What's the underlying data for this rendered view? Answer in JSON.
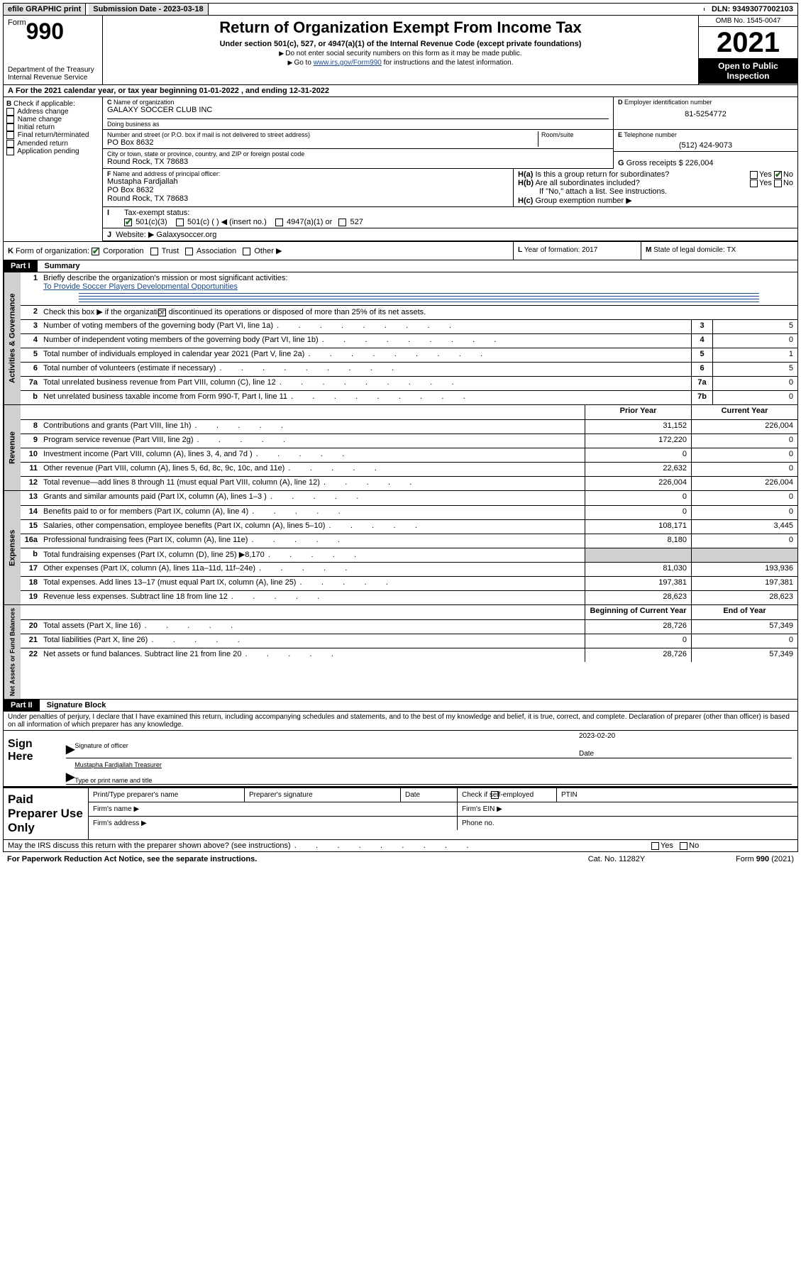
{
  "topbar": {
    "efile": "efile GRAPHIC print",
    "submission_label": "Submission Date - 2023-03-18",
    "dln": "DLN: 93493077002103"
  },
  "header": {
    "form_label": "Form",
    "form_num": "990",
    "dept": "Department of the Treasury",
    "irs": "Internal Revenue Service",
    "title": "Return of Organization Exempt From Income Tax",
    "sub": "Under section 501(c), 527, or 4947(a)(1) of the Internal Revenue Code (except private foundations)",
    "note1": "Do not enter social security numbers on this form as it may be made public.",
    "note2_pre": "Go to ",
    "note2_link": "www.irs.gov/Form990",
    "note2_post": " for instructions and the latest information.",
    "omb": "OMB No. 1545-0047",
    "year": "2021",
    "inspect": "Open to Public Inspection"
  },
  "lineA": "For the 2021 calendar year, or tax year beginning 01-01-2022   , and ending 12-31-2022",
  "B": {
    "label": "Check if applicable:",
    "opts": [
      "Address change",
      "Name change",
      "Initial return",
      "Final return/terminated",
      "Amended return",
      "Application pending"
    ]
  },
  "C": {
    "name_label": "Name of organization",
    "name": "GALAXY SOCCER CLUB INC",
    "dba_label": "Doing business as",
    "street_label": "Number and street (or P.O. box if mail is not delivered to street address)",
    "room_label": "Room/suite",
    "street": "PO Box 8632",
    "city_label": "City or town, state or province, country, and ZIP or foreign postal code",
    "city": "Round Rock, TX  78683"
  },
  "D": {
    "label": "Employer identification number",
    "val": "81-5254772"
  },
  "E": {
    "label": "Telephone number",
    "val": "(512) 424-9073"
  },
  "G": {
    "label": "Gross receipts $",
    "val": "226,004"
  },
  "F": {
    "label": "Name and address of principal officer:",
    "name": "Mustapha Fardjallah",
    "addr1": "PO Box 8632",
    "addr2": "Round Rock, TX  78683"
  },
  "H": {
    "a": "Is this a group return for subordinates?",
    "b": "Are all subordinates included?",
    "note": "If \"No,\" attach a list. See instructions.",
    "c": "Group exemption number ▶",
    "yes": "Yes",
    "no": "No"
  },
  "I": {
    "label": "Tax-exempt status:",
    "o1": "501(c)(3)",
    "o2": "501(c) (  ) ◀ (insert no.)",
    "o3": "4947(a)(1) or",
    "o4": "527"
  },
  "J": {
    "label": "Website: ▶",
    "val": "Galaxysoccer.org"
  },
  "K": {
    "label": "Form of organization:",
    "o1": "Corporation",
    "o2": "Trust",
    "o3": "Association",
    "o4": "Other ▶"
  },
  "L": {
    "label": "Year of formation: 2017"
  },
  "M": {
    "label": "State of legal domicile: TX"
  },
  "part1": {
    "hdr": "Part I",
    "title": "Summary",
    "l1_label": "Briefly describe the organization's mission or most significant activities:",
    "l1_val": "To Provide Soccer Players Developmental Opportunities",
    "l2": "Check this box ▶       if the organization discontinued its operations or disposed of more than 25% of its net assets.",
    "rows_gov": [
      {
        "n": "3",
        "d": "Number of voting members of the governing body (Part VI, line 1a)",
        "box": "3",
        "v": "5"
      },
      {
        "n": "4",
        "d": "Number of independent voting members of the governing body (Part VI, line 1b)",
        "box": "4",
        "v": "0"
      },
      {
        "n": "5",
        "d": "Total number of individuals employed in calendar year 2021 (Part V, line 2a)",
        "box": "5",
        "v": "1"
      },
      {
        "n": "6",
        "d": "Total number of volunteers (estimate if necessary)",
        "box": "6",
        "v": "5"
      },
      {
        "n": "7a",
        "d": "Total unrelated business revenue from Part VIII, column (C), line 12",
        "box": "7a",
        "v": "0"
      },
      {
        "n": "b",
        "d": "Net unrelated business taxable income from Form 990-T, Part I, line 11",
        "box": "7b",
        "v": "0"
      }
    ],
    "col_prior": "Prior Year",
    "col_current": "Current Year",
    "rows_rev": [
      {
        "n": "8",
        "d": "Contributions and grants (Part VIII, line 1h)",
        "py": "31,152",
        "cy": "226,004"
      },
      {
        "n": "9",
        "d": "Program service revenue (Part VIII, line 2g)",
        "py": "172,220",
        "cy": "0"
      },
      {
        "n": "10",
        "d": "Investment income (Part VIII, column (A), lines 3, 4, and 7d )",
        "py": "0",
        "cy": "0"
      },
      {
        "n": "11",
        "d": "Other revenue (Part VIII, column (A), lines 5, 6d, 8c, 9c, 10c, and 11e)",
        "py": "22,632",
        "cy": "0"
      },
      {
        "n": "12",
        "d": "Total revenue—add lines 8 through 11 (must equal Part VIII, column (A), line 12)",
        "py": "226,004",
        "cy": "226,004"
      }
    ],
    "rows_exp": [
      {
        "n": "13",
        "d": "Grants and similar amounts paid (Part IX, column (A), lines 1–3 )",
        "py": "0",
        "cy": "0"
      },
      {
        "n": "14",
        "d": "Benefits paid to or for members (Part IX, column (A), line 4)",
        "py": "0",
        "cy": "0"
      },
      {
        "n": "15",
        "d": "Salaries, other compensation, employee benefits (Part IX, column (A), lines 5–10)",
        "py": "108,171",
        "cy": "3,445"
      },
      {
        "n": "16a",
        "d": "Professional fundraising fees (Part IX, column (A), line 11e)",
        "py": "8,180",
        "cy": "0"
      },
      {
        "n": "b",
        "d": "Total fundraising expenses (Part IX, column (D), line 25) ▶8,170",
        "py": "",
        "cy": "",
        "shaded": true
      },
      {
        "n": "17",
        "d": "Other expenses (Part IX, column (A), lines 11a–11d, 11f–24e)",
        "py": "81,030",
        "cy": "193,936"
      },
      {
        "n": "18",
        "d": "Total expenses. Add lines 13–17 (must equal Part IX, column (A), line 25)",
        "py": "197,381",
        "cy": "197,381"
      },
      {
        "n": "19",
        "d": "Revenue less expenses. Subtract line 18 from line 12",
        "py": "28,623",
        "cy": "28,623"
      }
    ],
    "col_beg": "Beginning of Current Year",
    "col_end": "End of Year",
    "rows_net": [
      {
        "n": "20",
        "d": "Total assets (Part X, line 16)",
        "py": "28,726",
        "cy": "57,349"
      },
      {
        "n": "21",
        "d": "Total liabilities (Part X, line 26)",
        "py": "0",
        "cy": "0"
      },
      {
        "n": "22",
        "d": "Net assets or fund balances. Subtract line 21 from line 20",
        "py": "28,726",
        "cy": "57,349"
      }
    ],
    "side_gov": "Activities & Governance",
    "side_rev": "Revenue",
    "side_exp": "Expenses",
    "side_net": "Net Assets or Fund Balances"
  },
  "part2": {
    "hdr": "Part II",
    "title": "Signature Block",
    "decl": "Under penalties of perjury, I declare that I have examined this return, including accompanying schedules and statements, and to the best of my knowledge and belief, it is true, correct, and complete. Declaration of preparer (other than officer) is based on all information of which preparer has any knowledge.",
    "sign_here": "Sign Here",
    "sig_officer": "Signature of officer",
    "date_label": "Date",
    "date_val": "2023-02-20",
    "name_title": "Mustapha Fardjallah  Treasurer",
    "type_name": "Type or print name and title",
    "paid": "Paid Preparer Use Only",
    "prep_name": "Print/Type preparer's name",
    "prep_sig": "Preparer's signature",
    "prep_date": "Date",
    "prep_check": "Check        if self-employed",
    "ptin": "PTIN",
    "firm_name": "Firm's name   ▶",
    "firm_ein": "Firm's EIN ▶",
    "firm_addr": "Firm's address ▶",
    "phone": "Phone no."
  },
  "footer": {
    "discuss": "May the IRS discuss this return with the preparer shown above? (see instructions)",
    "paperwork": "For Paperwork Reduction Act Notice, see the separate instructions.",
    "cat": "Cat. No. 11282Y",
    "form": "Form 990 (2021)"
  }
}
